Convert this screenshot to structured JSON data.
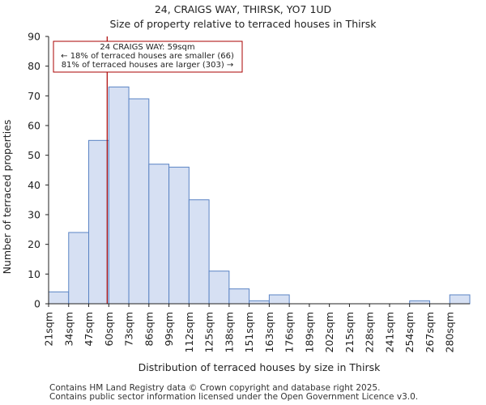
{
  "chart_data": {
    "type": "histogram",
    "title": "24, CRAIGS WAY, THIRSK, YO7 1UD",
    "subtitle": "Size of property relative to terraced houses in Thirsk",
    "xlabel": "Distribution of terraced houses by size in Thirsk",
    "ylabel": "Number of terraced properties",
    "ylim": [
      0,
      90
    ],
    "yticks": [
      0,
      10,
      20,
      30,
      40,
      50,
      60,
      70,
      80,
      90
    ],
    "categories": [
      "21sqm",
      "34sqm",
      "47sqm",
      "60sqm",
      "73sqm",
      "86sqm",
      "99sqm",
      "112sqm",
      "125sqm",
      "138sqm",
      "151sqm",
      "163sqm",
      "176sqm",
      "189sqm",
      "202sqm",
      "215sqm",
      "228sqm",
      "241sqm",
      "254sqm",
      "267sqm",
      "280sqm"
    ],
    "values": [
      4,
      24,
      55,
      73,
      69,
      47,
      46,
      35,
      11,
      5,
      1,
      3,
      0,
      0,
      0,
      0,
      0,
      0,
      1,
      0,
      3
    ],
    "bar_color": "#d6e0f3",
    "bar_edge_color": "#5b84c4",
    "marker": {
      "x_value_index": 2.92,
      "color": "#aa0000",
      "label_lines": [
        "24 CRAIGS WAY: 59sqm",
        "← 18% of terraced houses are smaller (66)",
        "81% of terraced houses are larger (303) →"
      ]
    }
  },
  "footer": {
    "line1": "Contains HM Land Registry data © Crown copyright and database right 2025.",
    "line2": "Contains public sector information licensed under the Open Government Licence v3.0."
  }
}
